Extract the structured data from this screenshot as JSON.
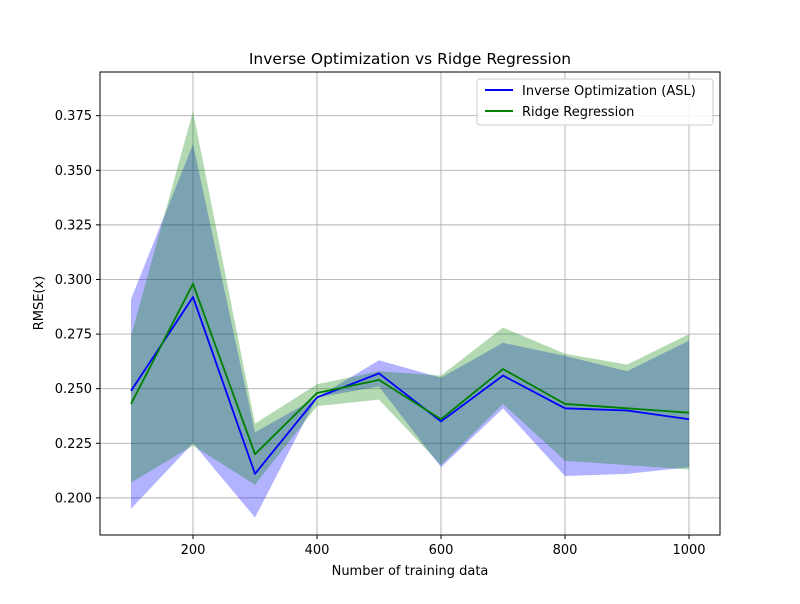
{
  "chart_data": {
    "type": "line",
    "title": "Inverse Optimization vs Ridge Regression",
    "xlabel": "Number of training data",
    "ylabel": "RMSE(x)",
    "x": [
      100,
      200,
      300,
      400,
      500,
      600,
      700,
      800,
      900,
      1000
    ],
    "xlim": [
      50,
      1050
    ],
    "ylim": [
      0.183,
      0.395
    ],
    "xticks": [
      200,
      400,
      600,
      800,
      1000
    ],
    "yticks": [
      0.2,
      0.225,
      0.25,
      0.275,
      0.3,
      0.325,
      0.35,
      0.375
    ],
    "xtick_labels": [
      "200",
      "400",
      "600",
      "800",
      "1000"
    ],
    "ytick_labels": [
      "0.200",
      "0.225",
      "0.250",
      "0.275",
      "0.300",
      "0.325",
      "0.350",
      "0.375"
    ],
    "grid": true,
    "legend_position": "top-right",
    "series": [
      {
        "name": "Inverse Optimization (ASL)",
        "color": "#0000ff",
        "band_color": "#0000ff",
        "values": [
          0.249,
          0.292,
          0.211,
          0.246,
          0.257,
          0.235,
          0.256,
          0.241,
          0.24,
          0.236
        ],
        "lower": [
          0.195,
          0.225,
          0.191,
          0.246,
          0.251,
          0.214,
          0.241,
          0.21,
          0.211,
          0.214
        ],
        "upper": [
          0.291,
          0.362,
          0.23,
          0.246,
          0.263,
          0.255,
          0.271,
          0.265,
          0.258,
          0.272
        ]
      },
      {
        "name": "Ridge Regression",
        "color": "#008000",
        "band_color": "#008000",
        "values": [
          0.243,
          0.298,
          0.22,
          0.248,
          0.254,
          0.236,
          0.259,
          0.243,
          0.241,
          0.239
        ],
        "lower": [
          0.207,
          0.224,
          0.206,
          0.242,
          0.245,
          0.215,
          0.243,
          0.217,
          0.215,
          0.213
        ],
        "upper": [
          0.274,
          0.377,
          0.234,
          0.252,
          0.258,
          0.256,
          0.278,
          0.266,
          0.261,
          0.275
        ]
      }
    ]
  }
}
